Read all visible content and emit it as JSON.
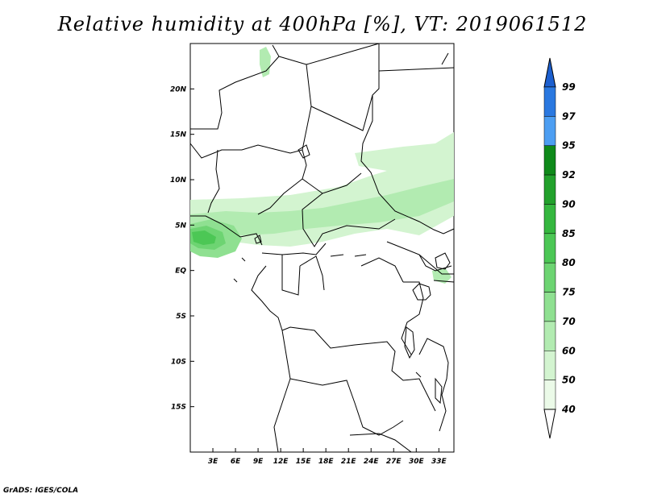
{
  "title": "Relative humidity at 400hPa [%], VT: 2019061512",
  "credit": "GrADS: IGES/COLA",
  "map": {
    "lon_range": [
      0,
      35
    ],
    "lat_range": [
      -20,
      25
    ],
    "lon_ticks": [
      "3E",
      "6E",
      "9E",
      "12E",
      "15E",
      "18E",
      "21E",
      "24E",
      "27E",
      "30E",
      "33E"
    ],
    "lat_ticks": [
      "20N",
      "15N",
      "10N",
      "5N",
      "EQ",
      "5S",
      "10S",
      "15S"
    ]
  },
  "colorbar": {
    "levels": [
      "99",
      "97",
      "95",
      "92",
      "90",
      "85",
      "80",
      "75",
      "70",
      "60",
      "50",
      "40"
    ],
    "colors": [
      "#1c5fcf",
      "#2a78e0",
      "#4d9ef2",
      "#0f8a1a",
      "#22a12c",
      "#35b73f",
      "#4cc755",
      "#6dd472",
      "#8fe091",
      "#b2ebb1",
      "#d3f4d0",
      "#ebfae8"
    ]
  }
}
